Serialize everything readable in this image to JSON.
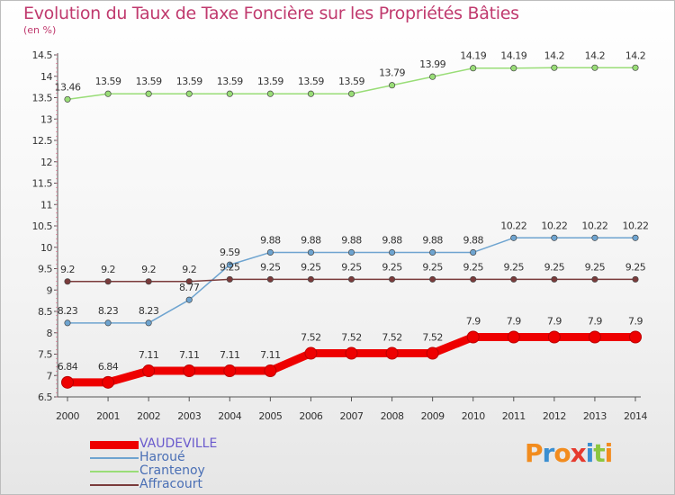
{
  "header": {
    "title": "Evolution du Taux de Taxe Foncière sur les Propriétés Bâties",
    "unit": "(en %)"
  },
  "brand": {
    "logo_letters": [
      "P",
      "r",
      "o",
      "x",
      "i",
      "t",
      "i"
    ],
    "logo_colors": [
      "#f28c1e",
      "#3b8fd1",
      "#f28c1e",
      "#e63a2e",
      "#3b8fd1",
      "#8cc63f",
      "#f28c1e"
    ]
  },
  "chart_data": {
    "type": "line",
    "title": "Evolution du Taux de Taxe Foncière sur les Propriétés Bâties",
    "ylabel": "(en %)",
    "x": [
      2000,
      2001,
      2002,
      2003,
      2004,
      2005,
      2006,
      2007,
      2008,
      2009,
      2010,
      2011,
      2012,
      2013,
      2014
    ],
    "ylim": [
      6.5,
      14.5
    ],
    "yticks": [
      "6.5",
      "7",
      "7.5",
      "8",
      "8.5",
      "9",
      "9.5",
      "10",
      "10.5",
      "11",
      "11.5",
      "12",
      "12.5",
      "13",
      "13.5",
      "14",
      "14.5"
    ],
    "grid": false,
    "legend_position": "bottom-left",
    "series": [
      {
        "name": "VAUDEVILLE",
        "color": "#ee0000",
        "values": [
          6.84,
          6.84,
          7.11,
          7.11,
          7.11,
          7.11,
          7.52,
          7.52,
          7.52,
          7.52,
          7.9,
          7.9,
          7.9,
          7.9,
          7.9
        ],
        "labels": [
          "6.84",
          "6.84",
          "7.11",
          "7.11",
          "7.11",
          "7.11",
          "7.52",
          "7.52",
          "7.52",
          "7.52",
          "7.9",
          "7.9",
          "7.9",
          "7.9",
          "7.9"
        ]
      },
      {
        "name": "Haroué",
        "color": "#6ea4d0",
        "values": [
          8.23,
          8.23,
          8.23,
          8.77,
          9.59,
          9.88,
          9.88,
          9.88,
          9.88,
          9.88,
          9.88,
          10.22,
          10.22,
          10.22,
          10.22
        ],
        "labels": [
          "8.23",
          "8.23",
          "8.23",
          "8.77",
          "9.59",
          "9.88",
          "9.88",
          "9.88",
          "9.88",
          "9.88",
          "9.88",
          "10.22",
          "10.22",
          "10.22",
          "10.22"
        ]
      },
      {
        "name": "Crantenoy",
        "color": "#99dd77",
        "values": [
          13.46,
          13.59,
          13.59,
          13.59,
          13.59,
          13.59,
          13.59,
          13.59,
          13.79,
          13.99,
          14.19,
          14.19,
          14.2,
          14.2,
          14.2
        ],
        "labels": [
          "13.46",
          "13.59",
          "13.59",
          "13.59",
          "13.59",
          "13.59",
          "13.59",
          "13.59",
          "13.79",
          "13.99",
          "14.19",
          "14.19",
          "14.2",
          "14.2",
          "14.2"
        ]
      },
      {
        "name": "Affracourt",
        "color": "#7a3b3b",
        "values": [
          9.2,
          9.2,
          9.2,
          9.2,
          9.25,
          9.25,
          9.25,
          9.25,
          9.25,
          9.25,
          9.25,
          9.25,
          9.25,
          9.25,
          9.25
        ],
        "labels": [
          "9.2",
          "9.2",
          "9.2",
          "9.2",
          "9.25",
          "9.25",
          "9.25",
          "9.25",
          "9.25",
          "9.25",
          "9.25",
          "9.25",
          "9.25",
          "9.25",
          "9.25"
        ]
      }
    ]
  }
}
